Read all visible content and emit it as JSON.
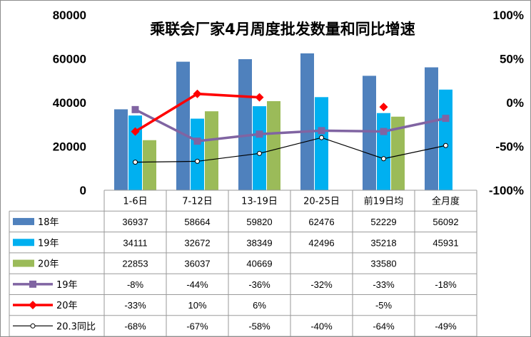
{
  "chart_data": {
    "type": "bar",
    "title": "乘联会厂家4月周度批发数量和同比增速",
    "categories": [
      "1-6日",
      "7-12日",
      "13-19日",
      "20-25日",
      "前19日均",
      "全月度"
    ],
    "y_left": {
      "ylim": [
        0,
        80000
      ],
      "ticks": [
        "80000",
        "60000",
        "40000",
        "20000",
        "0"
      ]
    },
    "y_right": {
      "ylim": [
        -100,
        100
      ],
      "ticks": [
        "100%",
        "50%",
        "0%",
        "-50%",
        "-100%"
      ]
    },
    "grid": false,
    "legend": "data-table",
    "bar_series": [
      {
        "name": "18年",
        "color": "#4f81bd",
        "values": [
          36937,
          58664,
          59820,
          62476,
          52229,
          56092
        ],
        "labels": [
          "36937",
          "58664",
          "59820",
          "62476",
          "52229",
          "56092"
        ]
      },
      {
        "name": "19年",
        "color": "#00b0f0",
        "values": [
          34111,
          32672,
          38349,
          42496,
          35218,
          45931
        ],
        "labels": [
          "34111",
          "32672",
          "38349",
          "42496",
          "35218",
          "45931"
        ]
      },
      {
        "name": "20年",
        "color": "#9bbb59",
        "values": [
          22853,
          36037,
          40669,
          null,
          33580,
          null
        ],
        "labels": [
          "22853",
          "36037",
          "40669",
          "",
          "33580",
          ""
        ]
      }
    ],
    "line_series": [
      {
        "name": "19年",
        "color": "#8064a2",
        "marker": "square",
        "values": [
          -8,
          -44,
          -36,
          -32,
          -33,
          -18
        ],
        "labels": [
          "-8%",
          "-44%",
          "-36%",
          "-32%",
          "-33%",
          "-18%"
        ]
      },
      {
        "name": "20年",
        "color": "#ff0000",
        "marker": "diamond",
        "values": [
          -33,
          10,
          6,
          null,
          -5,
          null
        ],
        "labels": [
          "-33%",
          "10%",
          "6%",
          "",
          "-5%",
          ""
        ]
      },
      {
        "name": "20.3同比",
        "color": "#000000",
        "marker": "circle",
        "values": [
          -68,
          -67,
          -58,
          -40,
          -64,
          -49
        ],
        "labels": [
          "-68%",
          "-67%",
          "-58%",
          "-40%",
          "-64%",
          "-49%"
        ]
      }
    ]
  }
}
